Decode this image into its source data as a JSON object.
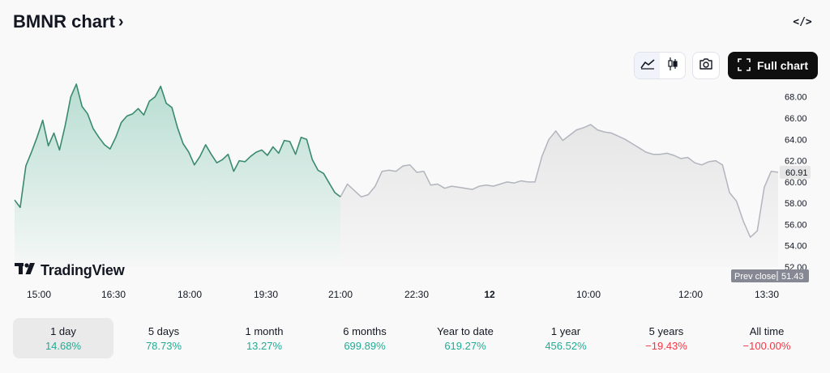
{
  "header": {
    "title": "BMNR chart",
    "title_chevron": "›",
    "embed_label": "</>"
  },
  "toolbar": {
    "area_icon": "area-chart-icon",
    "candles_icon": "candlestick-icon",
    "snapshot_icon": "camera-icon",
    "fullscreen_icon": "fullscreen-icon",
    "full_chart_label": "Full chart"
  },
  "logo": {
    "text": "TradingView"
  },
  "colors": {
    "session_line": "#3a8a6e",
    "session_fill": "#2ea37f",
    "extended_line": "#b2b5be",
    "extended_fill": "#e6e6e6",
    "last_price_bg": "#e6e6e6",
    "prev_close_bg": "#868993"
  },
  "chart_data": {
    "type": "area",
    "title": "",
    "xlabel": "",
    "ylabel": "",
    "ylim": [
      52,
      69.5
    ],
    "y_ticks": [
      "68.00",
      "66.00",
      "64.00",
      "62.00",
      "60.00",
      "58.00",
      "56.00",
      "54.00",
      "52.00"
    ],
    "y_tick_values": [
      68,
      66,
      64,
      62,
      60,
      58,
      56,
      54,
      52
    ],
    "x_ticks": [
      "15:00",
      "16:30",
      "18:00",
      "19:30",
      "21:00",
      "22:30",
      "12",
      "10:00",
      "12:00",
      "13:30"
    ],
    "last_price": "60.91",
    "prev_close_label": "Prev close",
    "prev_close": "51.43",
    "series": [
      {
        "values": [
          58.3,
          57.6,
          61.5,
          62.8,
          64.2,
          65.8,
          63.4,
          64.6,
          63.0,
          65.3,
          68.0,
          69.2,
          67.1,
          66.4,
          65.0,
          64.2,
          63.5,
          63.1,
          64.2,
          65.6,
          66.2,
          66.4,
          66.9,
          66.3,
          67.6,
          68.0,
          69.0,
          67.4,
          67.0,
          65.1,
          63.6,
          62.8,
          61.6,
          62.4,
          63.5,
          62.6,
          61.8,
          62.1,
          62.6,
          61.0,
          62.0,
          61.9,
          62.4,
          62.8,
          63.0,
          62.5,
          63.3,
          62.7,
          63.9,
          63.8,
          62.6,
          64.2,
          64.0,
          62.1,
          61.1,
          60.8,
          59.9,
          59.0,
          58.6
        ]
      },
      {
        "values": [
          58.6,
          59.8,
          59.2,
          58.6,
          58.8,
          59.6,
          61.0,
          61.1,
          61.0,
          61.5,
          61.6,
          60.9,
          61.0,
          59.7,
          59.8,
          59.4,
          59.6,
          59.5,
          59.4,
          59.3,
          59.6,
          59.7,
          59.6,
          59.8,
          60.0,
          59.9,
          60.1,
          60.0,
          60.0,
          62.4,
          64.0,
          64.8,
          63.9,
          64.4,
          64.9,
          65.1,
          65.4,
          64.9,
          64.7,
          64.6,
          64.3,
          64.0,
          63.6,
          63.2,
          62.8,
          62.6,
          62.6,
          62.7,
          62.5,
          62.2,
          62.3,
          61.8,
          61.6,
          61.9,
          62.0,
          61.6,
          59.0,
          58.2,
          56.3,
          54.8,
          55.4,
          59.5,
          61.0,
          60.91
        ]
      }
    ]
  },
  "periods": [
    {
      "label": "1 day",
      "value": "14.68%",
      "trend": "pos"
    },
    {
      "label": "5 days",
      "value": "78.73%",
      "trend": "pos"
    },
    {
      "label": "1 month",
      "value": "13.27%",
      "trend": "pos"
    },
    {
      "label": "6 months",
      "value": "699.89%",
      "trend": "pos"
    },
    {
      "label": "Year to date",
      "value": "619.27%",
      "trend": "pos"
    },
    {
      "label": "1 year",
      "value": "456.52%",
      "trend": "pos"
    },
    {
      "label": "5 years",
      "value": "−19.43%",
      "trend": "neg"
    },
    {
      "label": "All time",
      "value": "−100.00%",
      "trend": "neg"
    }
  ]
}
